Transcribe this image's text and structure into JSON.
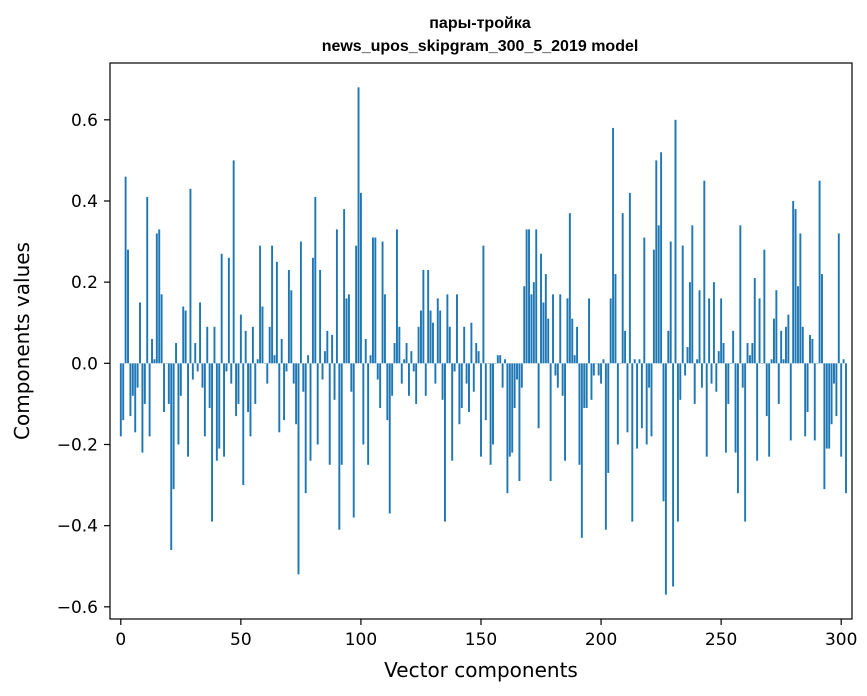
{
  "chart_data": {
    "type": "bar",
    "title_line1": "пары-тройка",
    "title_line2": "news_upos_skipgram_300_5_2019 model",
    "xlabel": "Vector components",
    "ylabel": "Components values",
    "xlim": [
      -4.5,
      304.5
    ],
    "ylim": [
      -0.63,
      0.74
    ],
    "x_ticks": [
      0,
      50,
      100,
      150,
      200,
      250,
      300
    ],
    "x_tick_labels": [
      "0",
      "50",
      "100",
      "150",
      "200",
      "250",
      "300"
    ],
    "y_ticks": [
      -0.6,
      -0.4,
      -0.2,
      0.0,
      0.2,
      0.4,
      0.6
    ],
    "y_tick_labels": [
      "−0.6",
      "−0.4",
      "−0.2",
      "0.0",
      "0.2",
      "0.4",
      "0.6"
    ],
    "grid": false,
    "legend": "none",
    "bar_color": "#1f77b4",
    "values": [
      -0.18,
      -0.14,
      0.46,
      0.28,
      -0.13,
      -0.08,
      -0.17,
      -0.06,
      0.15,
      -0.22,
      -0.1,
      0.41,
      -0.18,
      0.06,
      0.01,
      0.32,
      0.33,
      0.17,
      -0.12,
      0.0,
      -0.1,
      -0.46,
      -0.31,
      0.05,
      -0.2,
      -0.08,
      0.14,
      0.13,
      -0.23,
      0.43,
      -0.04,
      0.05,
      -0.02,
      0.15,
      -0.06,
      -0.18,
      0.09,
      -0.11,
      -0.39,
      0.09,
      -0.24,
      -0.21,
      0.27,
      -0.23,
      -0.02,
      0.26,
      -0.05,
      0.5,
      -0.13,
      -0.1,
      0.12,
      -0.3,
      0.08,
      -0.12,
      -0.18,
      0.09,
      -0.1,
      0.01,
      0.29,
      0.14,
      0.0,
      -0.05,
      0.09,
      0.29,
      0.02,
      0.25,
      -0.17,
      0.06,
      -0.14,
      -0.02,
      0.23,
      0.18,
      -0.05,
      -0.15,
      -0.52,
      0.3,
      -0.07,
      -0.32,
      0.02,
      -0.24,
      0.26,
      0.41,
      -0.2,
      0.23,
      -0.04,
      0.03,
      0.08,
      -0.25,
      0.07,
      -0.09,
      0.33,
      -0.41,
      -0.25,
      0.38,
      0.16,
      0.17,
      -0.07,
      -0.38,
      0.29,
      0.68,
      0.42,
      -0.2,
      0.06,
      -0.25,
      0.02,
      0.31,
      0.31,
      -0.04,
      -0.11,
      0.3,
      0.17,
      -0.14,
      -0.37,
      -0.08,
      0.05,
      0.33,
      0.09,
      -0.05,
      0.01,
      0.05,
      -0.08,
      0.03,
      -0.02,
      -0.1,
      0.09,
      0.13,
      0.23,
      -0.08,
      0.23,
      0.13,
      0.1,
      -0.05,
      0.16,
      0.13,
      -0.09,
      -0.39,
      0.17,
      0.09,
      -0.24,
      -0.02,
      0.17,
      -0.15,
      -0.11,
      0.09,
      -0.05,
      -0.12,
      0.1,
      -0.07,
      0.05,
      0.03,
      -0.23,
      0.29,
      -0.14,
      0.0,
      -0.25,
      -0.2,
      0.0,
      0.02,
      0.02,
      -0.06,
      0.01,
      -0.32,
      -0.23,
      -0.22,
      -0.11,
      -0.04,
      -0.29,
      -0.06,
      0.19,
      0.33,
      0.33,
      0.17,
      0.2,
      0.33,
      -0.16,
      0.27,
      0.15,
      0.22,
      0.11,
      -0.29,
      0.17,
      -0.03,
      -0.06,
      0.17,
      -0.08,
      -0.24,
      0.16,
      0.37,
      0.11,
      0.02,
      0.09,
      -0.25,
      -0.43,
      -0.11,
      -0.11,
      0.16,
      -0.09,
      -0.03,
      0.0,
      -0.03,
      -0.05,
      0.01,
      -0.41,
      -0.27,
      0.16,
      0.58,
      0.22,
      -0.2,
      0.0,
      0.37,
      0.08,
      -0.17,
      0.42,
      -0.39,
      0.01,
      -0.21,
      0.01,
      -0.16,
      0.31,
      -0.2,
      -0.06,
      -0.18,
      0.28,
      0.5,
      0.34,
      0.52,
      -0.34,
      -0.57,
      0.08,
      0.3,
      -0.55,
      0.6,
      -0.39,
      -0.09,
      0.29,
      -0.03,
      0.04,
      0.2,
      0.34,
      -0.1,
      0.01,
      0.18,
      -0.06,
      0.45,
      -0.23,
      0.16,
      -0.05,
      0.2,
      -0.07,
      0.03,
      0.16,
      0.05,
      -0.22,
      -0.1,
      0.0,
      0.08,
      -0.22,
      -0.32,
      0.34,
      -0.06,
      -0.39,
      0.05,
      0.02,
      0.05,
      0.21,
      -0.24,
      0.16,
      0.0,
      0.28,
      -0.13,
      -0.23,
      0.01,
      0.11,
      0.18,
      -0.1,
      0.08,
      0.01,
      0.09,
      0.12,
      -0.19,
      0.4,
      0.38,
      0.19,
      0.32,
      0.09,
      -0.18,
      -0.12,
      0.07,
      0.06,
      -0.19,
      0.0,
      0.45,
      0.22,
      -0.31,
      -0.21,
      -0.21,
      -0.15,
      -0.05,
      -0.13,
      0.32,
      -0.23,
      0.01,
      -0.32
    ]
  }
}
